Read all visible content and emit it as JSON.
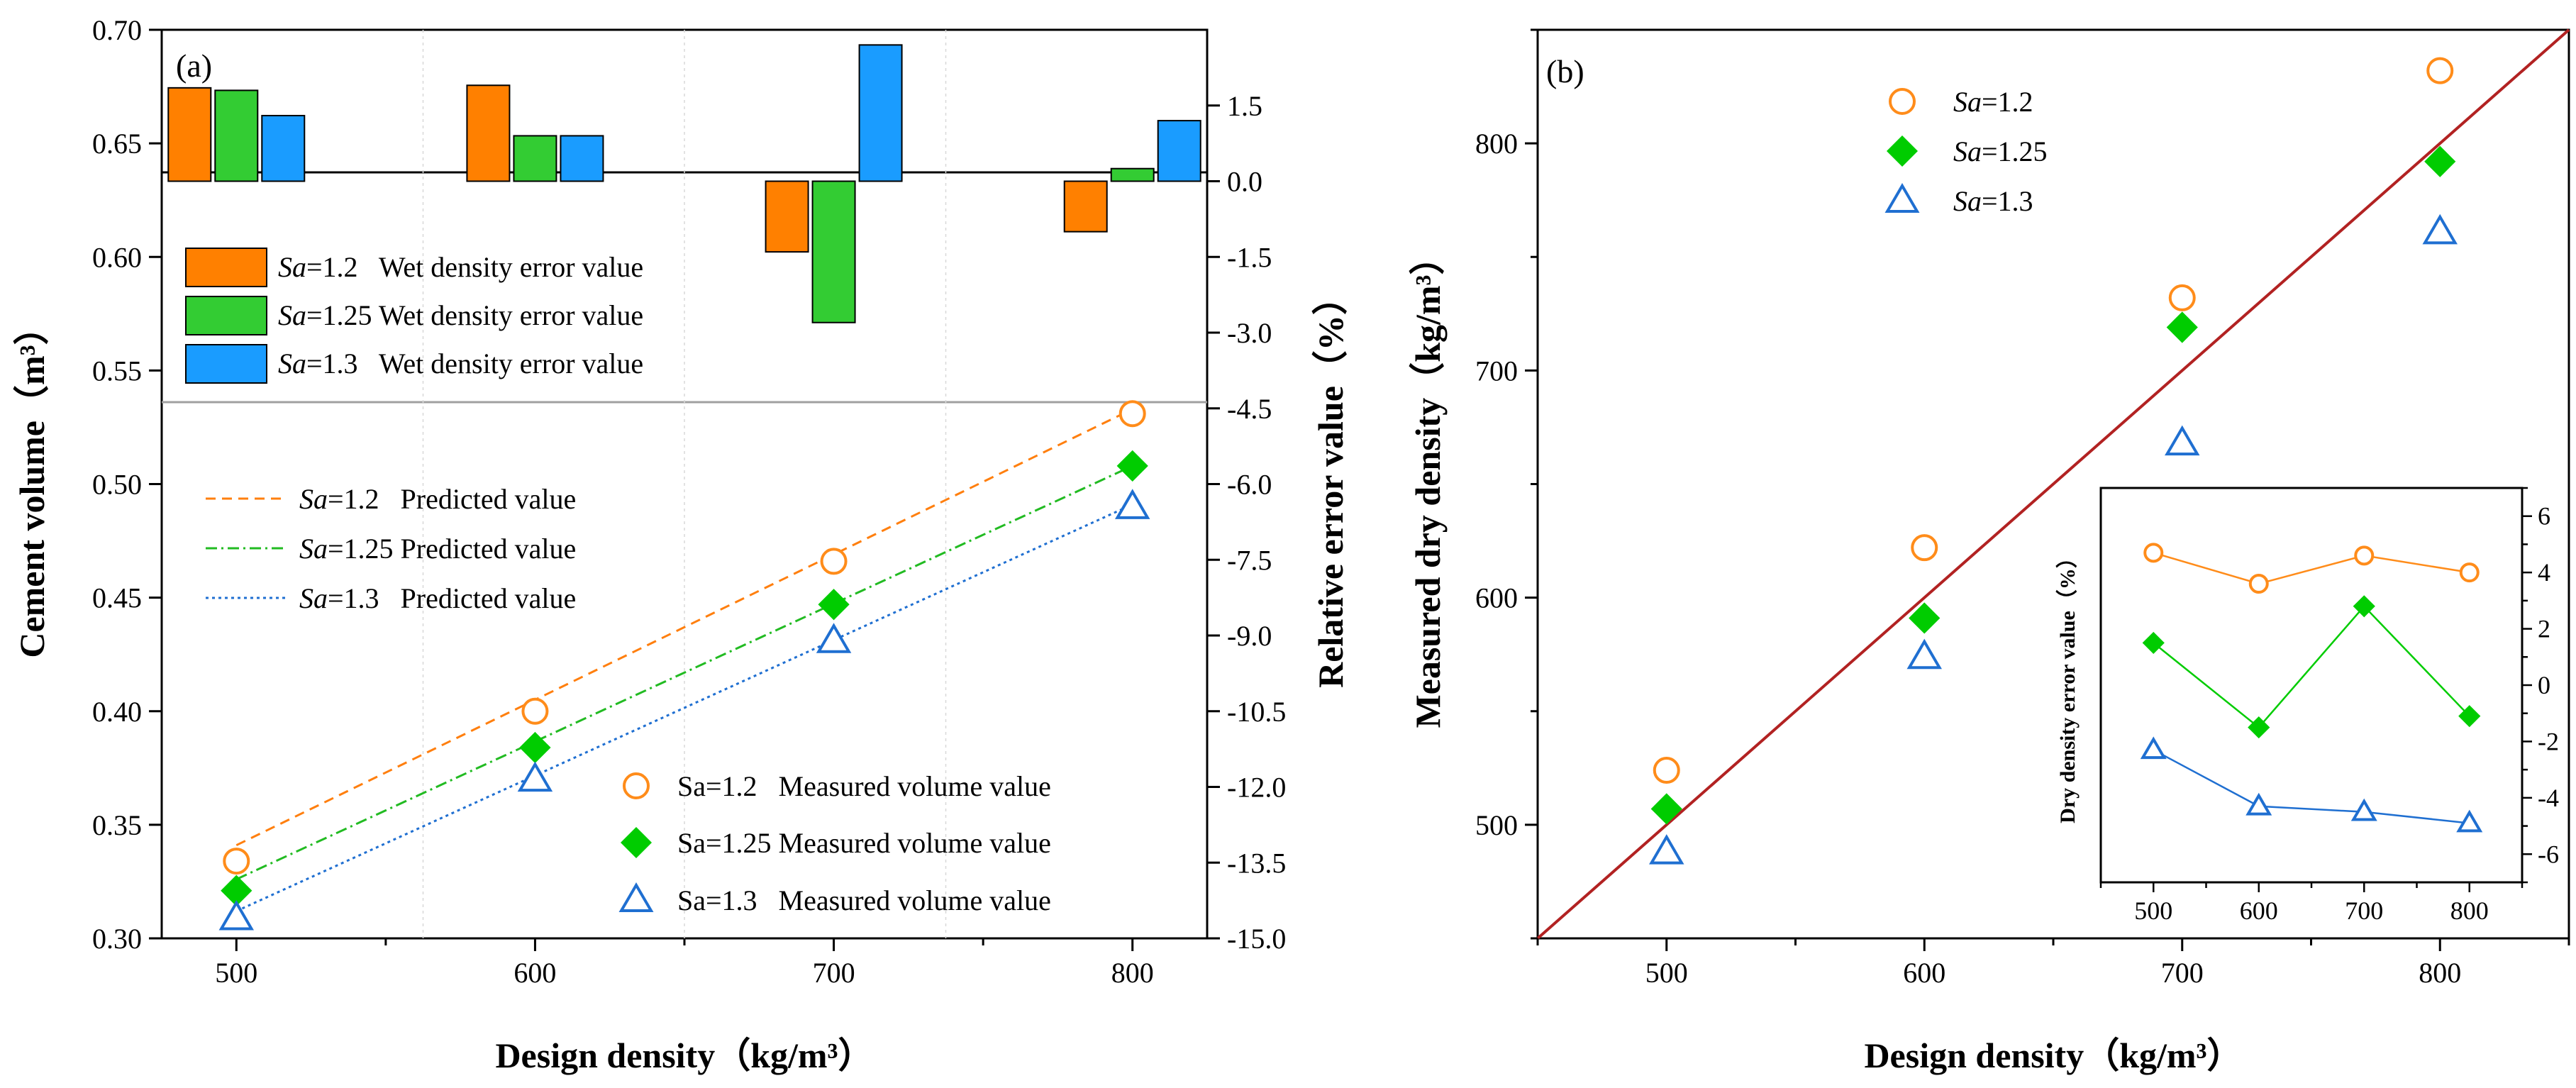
{
  "chart_data": [
    {
      "panel": "(a)",
      "type": "line",
      "xlabel": "Design density（kg/m³）",
      "ylabel": "Cement volume（m³）",
      "x_ticks": [
        500,
        600,
        700,
        800
      ],
      "xlim": [
        475,
        825
      ],
      "ylim": [
        0.3,
        0.7
      ],
      "y_ticks": [
        "0.30",
        "0.35",
        "0.40",
        "0.45",
        "0.50",
        "0.55",
        "0.60",
        "0.65",
        "0.70"
      ],
      "predicted_series": [
        {
          "key": "s12",
          "label_italic": "Sa",
          "label_rest": "=1.2   Predicted value",
          "color": "#ff7f0e",
          "dash": "14,9",
          "x": [
            500,
            800
          ],
          "y": [
            0.341,
            0.533
          ]
        },
        {
          "key": "s125",
          "label_italic": "Sa",
          "label_rest": "=1.25 Predicted value",
          "color": "#22bb22",
          "dash": "16,6,3,6",
          "x": [
            500,
            800
          ],
          "y": [
            0.326,
            0.508
          ]
        },
        {
          "key": "s13",
          "label_italic": "Sa",
          "label_rest": "=1.3   Predicted value",
          "color": "#1f6fd1",
          "dash": "4,5",
          "x": [
            500,
            800
          ],
          "y": [
            0.312,
            0.491
          ]
        }
      ],
      "measured_series": [
        {
          "key": "s12",
          "label": "Sa=1.2   Measured volume value",
          "marker": "circle",
          "color": "#ff8c1a",
          "x": [
            500,
            600,
            700,
            800
          ],
          "y": [
            0.334,
            0.4,
            0.466,
            0.531
          ]
        },
        {
          "key": "s125",
          "label": "Sa=1.25 Measured volume value",
          "marker": "diamond",
          "color": "#00cc00",
          "x": [
            500,
            600,
            700,
            800
          ],
          "y": [
            0.321,
            0.384,
            0.447,
            0.508
          ]
        },
        {
          "key": "s13",
          "label": "Sa=1.3   Measured volume value",
          "marker": "triangle",
          "color": "#1f6fd1",
          "x": [
            500,
            600,
            700,
            800
          ],
          "y": [
            0.309,
            0.37,
            0.431,
            0.49
          ]
        }
      ],
      "secondary_axis": {
        "label": "Relative error value（%）",
        "ylim": [
          -15.0,
          3.0
        ],
        "ticks": [
          "1.5",
          "0.0",
          "-1.5",
          "-3.0",
          "-4.5",
          "-6.0",
          "-7.5",
          "-9.0",
          "-10.5",
          "-12.0",
          "-13.5",
          "-15.0"
        ],
        "bar_categories": [
          500,
          600,
          700,
          800
        ],
        "bar_series": [
          {
            "key": "s12",
            "label_italic": "Sa",
            "label_rest": "=1.2   Wet density error value",
            "color": "#ff8000",
            "values": [
              1.85,
              1.9,
              -1.4,
              -1.0
            ]
          },
          {
            "key": "s125",
            "label_italic": "Sa",
            "label_rest": "=1.25 Wet density error value",
            "color": "#33cc33",
            "values": [
              1.8,
              0.9,
              -2.8,
              0.25
            ]
          },
          {
            "key": "s13",
            "label_italic": "Sa",
            "label_rest": "=1.3   Wet density error value",
            "color": "#1a9cff",
            "values": [
              1.3,
              0.9,
              2.7,
              1.2
            ]
          }
        ]
      }
    },
    {
      "panel": "(b)",
      "type": "scatter",
      "xlabel": "Design density（kg/m³）",
      "ylabel": "Measured dry density（kg/m³）",
      "xlim": [
        450,
        850
      ],
      "ylim": [
        450,
        850
      ],
      "x_ticks": [
        500,
        600,
        700,
        800
      ],
      "y_ticks": [
        500,
        600,
        700,
        800
      ],
      "reference_line": {
        "color": "#b22222",
        "x": [
          450,
          850
        ],
        "y": [
          450,
          850
        ]
      },
      "series": [
        {
          "key": "s12",
          "label_italic": "Sa",
          "label_rest": "=1.2",
          "marker": "circle",
          "color": "#ff8c1a",
          "x": [
            500,
            600,
            700,
            800
          ],
          "y": [
            524,
            622,
            732,
            832
          ]
        },
        {
          "key": "s125",
          "label_italic": "Sa",
          "label_rest": "=1.25",
          "marker": "diamond",
          "color": "#00cc00",
          "x": [
            500,
            600,
            700,
            800
          ],
          "y": [
            507,
            591,
            719,
            792
          ]
        },
        {
          "key": "s13",
          "label_italic": "Sa",
          "label_rest": "=1.3",
          "marker": "triangle",
          "color": "#1f6fd1",
          "x": [
            500,
            600,
            700,
            800
          ],
          "y": [
            488,
            574,
            668,
            761
          ]
        }
      ],
      "inset": {
        "type": "line",
        "ylabel": "Dry density error value（%）",
        "xlim": [
          450,
          850
        ],
        "ylim": [
          -7,
          7
        ],
        "x_ticks": [
          500,
          600,
          700,
          800
        ],
        "y_ticks": [
          -6,
          -4,
          -2,
          0,
          2,
          4,
          6
        ],
        "series": [
          {
            "key": "s12",
            "marker": "circle",
            "color": "#ff8c1a",
            "x": [
              500,
              600,
              700,
              800
            ],
            "y": [
              4.7,
              3.6,
              4.6,
              4.0
            ]
          },
          {
            "key": "s125",
            "marker": "diamond",
            "color": "#00cc00",
            "x": [
              500,
              600,
              700,
              800
            ],
            "y": [
              1.5,
              -1.5,
              2.8,
              -1.1
            ]
          },
          {
            "key": "s13",
            "marker": "triangle",
            "color": "#1f6fd1",
            "x": [
              500,
              600,
              700,
              800
            ],
            "y": [
              -2.3,
              -4.3,
              -4.5,
              -4.9
            ]
          }
        ]
      }
    }
  ]
}
